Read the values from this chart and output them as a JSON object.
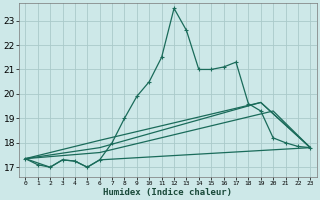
{
  "xlabel": "Humidex (Indice chaleur)",
  "xlim": [
    -0.5,
    23.5
  ],
  "ylim": [
    16.6,
    23.7
  ],
  "bg_color": "#cde8e8",
  "grid_color": "#aacaca",
  "line_color": "#1a6b5a",
  "xtick_labels": [
    "0",
    "1",
    "2",
    "3",
    "4",
    "5",
    "6",
    "7",
    "8",
    "9",
    "10",
    "11",
    "12",
    "13",
    "14",
    "15",
    "16",
    "17",
    "18",
    "19",
    "20",
    "21",
    "22",
    "23"
  ],
  "xtick_vals": [
    0,
    1,
    2,
    3,
    4,
    5,
    6,
    7,
    8,
    9,
    10,
    11,
    12,
    13,
    14,
    15,
    16,
    17,
    18,
    19,
    20,
    21,
    22,
    23
  ],
  "ytick_vals": [
    17,
    18,
    19,
    20,
    21,
    22,
    23
  ],
  "series_main": {
    "x": [
      0,
      1,
      2,
      3,
      4,
      5,
      6,
      7,
      8,
      9,
      10,
      11,
      12,
      13,
      14,
      15,
      16,
      17,
      18,
      19,
      20,
      21,
      22,
      23
    ],
    "y": [
      17.35,
      17.1,
      17.0,
      17.3,
      17.25,
      17.0,
      17.3,
      18.0,
      19.0,
      19.9,
      20.5,
      21.5,
      23.5,
      22.6,
      21.0,
      21.0,
      21.1,
      21.3,
      19.6,
      19.3,
      18.2,
      18.0,
      17.85,
      17.8
    ]
  },
  "series_flat": {
    "x": [
      0,
      2,
      3,
      4,
      5,
      6,
      23
    ],
    "y": [
      17.35,
      17.0,
      17.3,
      17.25,
      17.0,
      17.3,
      17.8
    ]
  },
  "series_line1": {
    "x": [
      0,
      6,
      20,
      23
    ],
    "y": [
      17.35,
      17.6,
      19.3,
      17.8
    ]
  },
  "series_line2": {
    "x": [
      0,
      6,
      19,
      23
    ],
    "y": [
      17.35,
      17.8,
      19.65,
      17.8
    ]
  },
  "series_line3": {
    "x": [
      0,
      6,
      19,
      23
    ],
    "y": [
      17.35,
      18.1,
      19.65,
      17.8
    ]
  }
}
